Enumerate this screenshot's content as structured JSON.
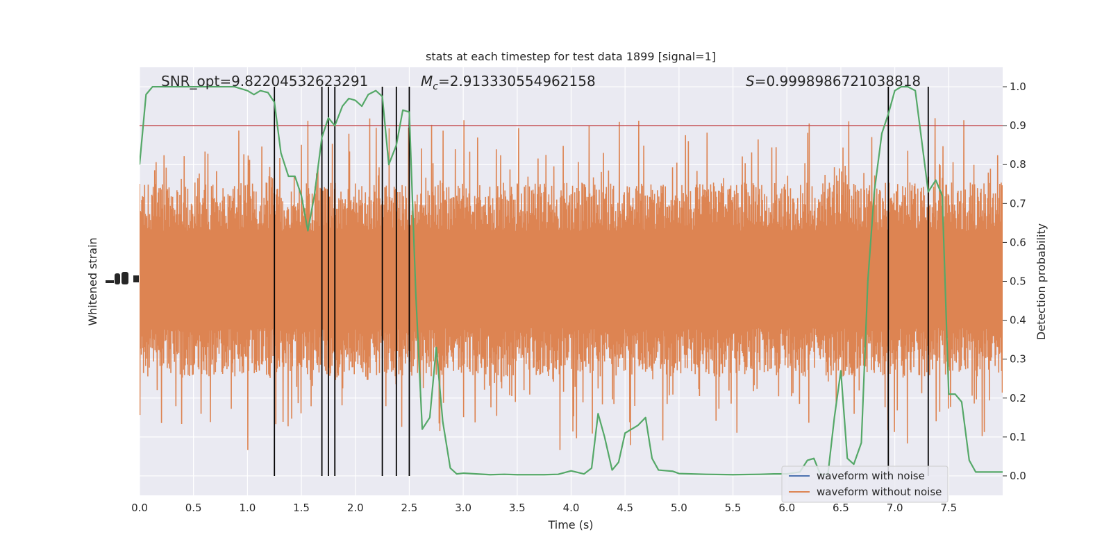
{
  "chart_data": {
    "type": "line",
    "title": "stats at each timestep for test data 1899 [signal=1]",
    "xlabel": "Time (s)",
    "ylabel_left": "Whitened strain",
    "ylabel_right": "Detection probability",
    "xlim": [
      0.0,
      8.0
    ],
    "ylim_right": [
      -0.05,
      1.05
    ],
    "xticks": [
      "0.0",
      "0.5",
      "1.0",
      "1.5",
      "2.0",
      "2.5",
      "3.0",
      "3.5",
      "4.0",
      "4.5",
      "5.0",
      "5.5",
      "6.0",
      "6.5",
      "7.0",
      "7.5"
    ],
    "xtick_values": [
      0.0,
      0.5,
      1.0,
      1.5,
      2.0,
      2.5,
      3.0,
      3.5,
      4.0,
      4.5,
      5.0,
      5.5,
      6.0,
      6.5,
      7.0,
      7.5
    ],
    "yticks_right": [
      "0.0",
      "0.1",
      "0.2",
      "0.3",
      "0.4",
      "0.5",
      "0.6",
      "0.7",
      "0.8",
      "0.9",
      "1.0"
    ],
    "ytick_values_right": [
      0.0,
      0.1,
      0.2,
      0.3,
      0.4,
      0.5,
      0.6,
      0.7,
      0.8,
      0.9,
      1.0
    ],
    "grid": true,
    "legend_position": "lower-right",
    "annotations": {
      "snr": "SNR_opt=9.82204532623291",
      "mc_symbol": "M",
      "mc_sub": "c",
      "mc_value": "=2.913330554962158",
      "s_symbol": "S",
      "s_value": "=0.9998986721038818"
    },
    "threshold": 0.9,
    "vertical_markers": [
      1.25,
      1.69,
      1.75,
      1.81,
      2.25,
      2.38,
      2.5,
      6.94,
      7.31
    ],
    "series": [
      {
        "name": "waveform with noise",
        "color": "#4c72b0",
        "role": "legend-only"
      },
      {
        "name": "waveform without noise",
        "color": "#dd8452",
        "role": "strain"
      },
      {
        "name": "",
        "color": "#55a868",
        "role": "probability",
        "x": [
          0.0,
          0.06,
          0.12,
          0.25,
          0.5,
          0.75,
          0.88,
          1.0,
          1.06,
          1.12,
          1.19,
          1.25,
          1.31,
          1.38,
          1.44,
          1.5,
          1.56,
          1.62,
          1.69,
          1.75,
          1.81,
          1.88,
          1.94,
          2.0,
          2.06,
          2.12,
          2.19,
          2.25,
          2.31,
          2.38,
          2.44,
          2.5,
          2.56,
          2.62,
          2.69,
          2.75,
          2.81,
          2.88,
          2.94,
          3.0,
          3.12,
          3.25,
          3.38,
          3.5,
          3.75,
          3.88,
          4.0,
          4.12,
          4.19,
          4.25,
          4.31,
          4.38,
          4.44,
          4.5,
          4.62,
          4.69,
          4.75,
          4.81,
          4.94,
          5.0,
          5.25,
          5.5,
          5.75,
          5.88,
          6.0,
          6.12,
          6.19,
          6.25,
          6.31,
          6.38,
          6.44,
          6.5,
          6.56,
          6.62,
          6.69,
          6.75,
          6.81,
          6.88,
          6.94,
          7.0,
          7.06,
          7.12,
          7.19,
          7.25,
          7.31,
          7.38,
          7.44,
          7.5,
          7.56,
          7.62,
          7.69,
          7.75,
          7.81,
          7.88,
          7.94,
          8.0
        ],
        "y": [
          0.8,
          0.98,
          1.0,
          1.0,
          1.0,
          1.0,
          1.0,
          0.99,
          0.98,
          0.99,
          0.985,
          0.96,
          0.83,
          0.77,
          0.77,
          0.72,
          0.63,
          0.72,
          0.87,
          0.92,
          0.9,
          0.95,
          0.97,
          0.965,
          0.95,
          0.98,
          0.99,
          0.975,
          0.8,
          0.85,
          0.94,
          0.935,
          0.47,
          0.12,
          0.15,
          0.33,
          0.14,
          0.02,
          0.005,
          0.007,
          0.005,
          0.003,
          0.004,
          0.003,
          0.003,
          0.004,
          0.013,
          0.005,
          0.02,
          0.16,
          0.1,
          0.015,
          0.035,
          0.11,
          0.13,
          0.15,
          0.045,
          0.015,
          0.012,
          0.006,
          0.004,
          0.003,
          0.004,
          0.005,
          0.005,
          0.01,
          0.04,
          0.045,
          0.004,
          0.004,
          0.15,
          0.27,
          0.045,
          0.03,
          0.085,
          0.5,
          0.73,
          0.88,
          0.93,
          0.99,
          1.0,
          1.0,
          0.99,
          0.86,
          0.73,
          0.76,
          0.72,
          0.21,
          0.21,
          0.19,
          0.04,
          0.01,
          0.01,
          0.01,
          0.01,
          0.01
        ]
      }
    ]
  }
}
